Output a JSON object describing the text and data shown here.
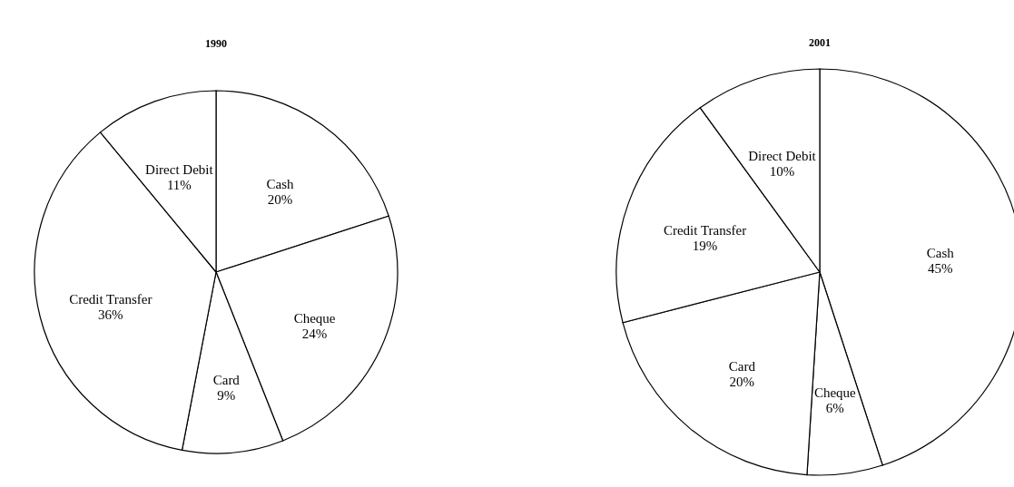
{
  "chart_data": [
    {
      "type": "pie",
      "title": "1990",
      "categories": [
        "Cash",
        "Cheque",
        "Card",
        "Credit Transfer",
        "Direct Debit"
      ],
      "values": [
        20,
        24,
        9,
        36,
        11
      ],
      "value_labels": [
        "20%",
        "24%",
        "9%",
        "36%",
        "11%"
      ],
      "colors": [
        "#ffffff",
        "#ffffff",
        "#ffffff",
        "#ffffff",
        "#ffffff"
      ]
    },
    {
      "type": "pie",
      "title": "2001",
      "categories": [
        "Cash",
        "Cheque",
        "Card",
        "Credit Transfer",
        "Direct Debit"
      ],
      "values": [
        45,
        6,
        20,
        19,
        10
      ],
      "value_labels": [
        "45%",
        "6%",
        "20%",
        "19%",
        "10%"
      ],
      "colors": [
        "#ffffff",
        "#ffffff",
        "#ffffff",
        "#ffffff",
        "#ffffff"
      ]
    }
  ]
}
